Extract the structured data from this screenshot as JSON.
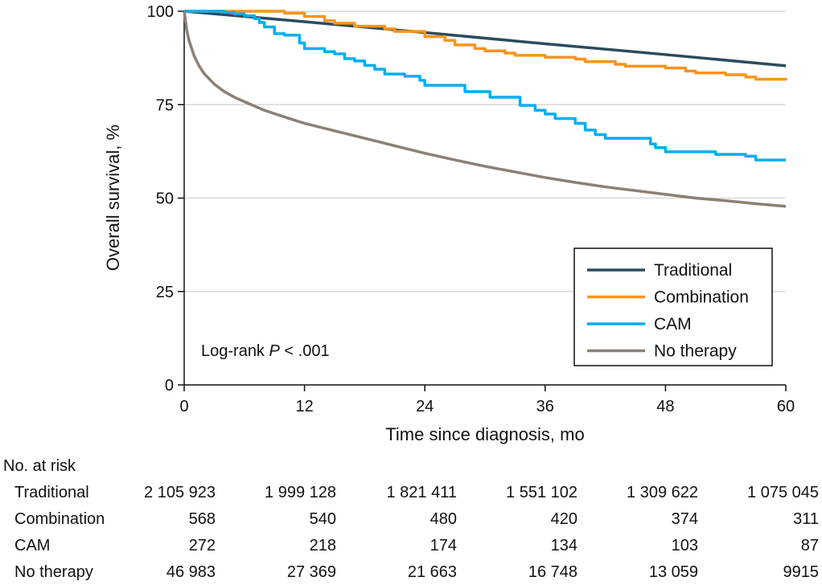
{
  "chart_data": {
    "type": "line",
    "title": "",
    "xlabel": "Time since diagnosis, mo",
    "ylabel": "Overall survival, %",
    "xlim": [
      0,
      60
    ],
    "ylim": [
      0,
      100
    ],
    "xticks": [
      0,
      12,
      24,
      36,
      48,
      60
    ],
    "yticks": [
      0,
      25,
      50,
      75,
      100
    ],
    "grid": "horizontal",
    "legend_position": "bottom-right",
    "annotation": {
      "prefix": "Log-rank ",
      "italic": "P",
      "suffix": " < .001"
    },
    "series": [
      {
        "name": "Traditional",
        "color": "#2b4c5c",
        "step": false,
        "points": [
          [
            0,
            100
          ],
          [
            12,
            97.2
          ],
          [
            24,
            94.3
          ],
          [
            36,
            91.3
          ],
          [
            48,
            88.4
          ],
          [
            60,
            85.4
          ]
        ]
      },
      {
        "name": "Combination",
        "color": "#f7941d",
        "step": true,
        "points": [
          [
            0,
            100
          ],
          [
            9,
            100
          ],
          [
            10,
            99.5
          ],
          [
            12,
            98.6
          ],
          [
            14,
            97.5
          ],
          [
            15,
            96.8
          ],
          [
            17,
            96
          ],
          [
            20,
            95.3
          ],
          [
            21,
            94.6
          ],
          [
            24,
            93.2
          ],
          [
            26,
            92.2
          ],
          [
            27,
            91
          ],
          [
            29,
            90
          ],
          [
            30,
            89.4
          ],
          [
            32,
            88.8
          ],
          [
            33,
            88.2
          ],
          [
            36,
            87.7
          ],
          [
            39,
            87.2
          ],
          [
            40,
            86.5
          ],
          [
            43,
            85.8
          ],
          [
            44,
            85.3
          ],
          [
            48,
            84.8
          ],
          [
            50,
            84
          ],
          [
            51,
            83.5
          ],
          [
            54,
            83
          ],
          [
            56,
            82.4
          ],
          [
            57,
            81.8
          ],
          [
            60,
            81.5
          ]
        ]
      },
      {
        "name": "CAM",
        "color": "#00aeef",
        "step": true,
        "points": [
          [
            0,
            100
          ],
          [
            4,
            99.7
          ],
          [
            5,
            99.3
          ],
          [
            6,
            98.8
          ],
          [
            7,
            98
          ],
          [
            7.5,
            97
          ],
          [
            8,
            95.8
          ],
          [
            9,
            94
          ],
          [
            10,
            93.6
          ],
          [
            11,
            93.6
          ],
          [
            11.5,
            91.5
          ],
          [
            12,
            90
          ],
          [
            14,
            89.2
          ],
          [
            15,
            88.6
          ],
          [
            16,
            87.3
          ],
          [
            17,
            86.7
          ],
          [
            18,
            85.5
          ],
          [
            19,
            84.5
          ],
          [
            20,
            83.2
          ],
          [
            22,
            82.6
          ],
          [
            23.5,
            81.5
          ],
          [
            24,
            80.2
          ],
          [
            27.5,
            80.2
          ],
          [
            28,
            78.5
          ],
          [
            30.5,
            77
          ],
          [
            33,
            77
          ],
          [
            33.5,
            74.8
          ],
          [
            35,
            73.5
          ],
          [
            36,
            72.5
          ],
          [
            37,
            71.3
          ],
          [
            39,
            70
          ],
          [
            40,
            68.2
          ],
          [
            41,
            67
          ],
          [
            42,
            66
          ],
          [
            46,
            66
          ],
          [
            46.5,
            64.5
          ],
          [
            47,
            63.5
          ],
          [
            48,
            62.4
          ],
          [
            52,
            62.4
          ],
          [
            53,
            61.7
          ],
          [
            56,
            61.2
          ],
          [
            57,
            60.2
          ],
          [
            60,
            60.2
          ]
        ]
      },
      {
        "name": "No therapy",
        "color": "#8a8173",
        "step": false,
        "points": [
          [
            0,
            100
          ],
          [
            0.25,
            95
          ],
          [
            0.5,
            92
          ],
          [
            1,
            88
          ],
          [
            1.5,
            85.3
          ],
          [
            2,
            83.3
          ],
          [
            3,
            80.5
          ],
          [
            4,
            78.5
          ],
          [
            5,
            77
          ],
          [
            6,
            75.8
          ],
          [
            8,
            73.5
          ],
          [
            10,
            71.7
          ],
          [
            12,
            70
          ],
          [
            15,
            68
          ],
          [
            18,
            66
          ],
          [
            21,
            64
          ],
          [
            24,
            62
          ],
          [
            27,
            60.2
          ],
          [
            30,
            58.5
          ],
          [
            33,
            57
          ],
          [
            36,
            55.5
          ],
          [
            39,
            54.2
          ],
          [
            42,
            53
          ],
          [
            45,
            52
          ],
          [
            48,
            51
          ],
          [
            51,
            50
          ],
          [
            54,
            49.3
          ],
          [
            57,
            48.5
          ],
          [
            60,
            47.8
          ]
        ]
      }
    ],
    "risk_table": {
      "title": "No. at risk",
      "times": [
        0,
        12,
        24,
        36,
        48,
        60
      ],
      "rows": [
        {
          "label": "Traditional",
          "values": [
            "2 105 923",
            "1 999 128",
            "1 821 411",
            "1 551 102",
            "1 309 622",
            "1 075 045"
          ]
        },
        {
          "label": "Combination",
          "values": [
            "568",
            "540",
            "480",
            "420",
            "374",
            "311"
          ]
        },
        {
          "label": "CAM",
          "values": [
            "272",
            "218",
            "174",
            "134",
            "103",
            "87"
          ]
        },
        {
          "label": "No therapy",
          "values": [
            "46 983",
            "27 369",
            "21 663",
            "16 748",
            "13 059",
            "9915"
          ]
        }
      ]
    }
  }
}
